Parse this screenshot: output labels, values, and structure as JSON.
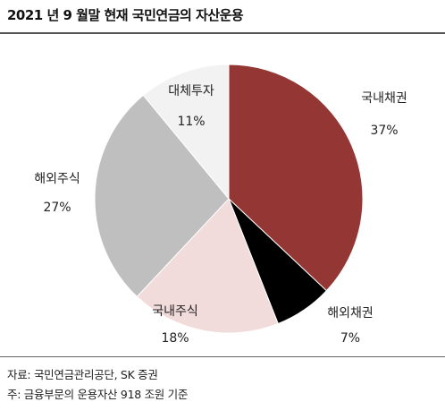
{
  "title": "2021 년 9 월말 현재 국민연금의 자산운용",
  "chart_data": {
    "type": "pie",
    "title": "2021 년 9 월말 현재 국민연금의 자산운용",
    "slices": [
      {
        "label": "국내채권",
        "value": 37,
        "value_label": "37%",
        "color": "#943634"
      },
      {
        "label": "해외채권",
        "value": 7,
        "value_label": "7%",
        "color": "#000000"
      },
      {
        "label": "국내주식",
        "value": 18,
        "value_label": "18%",
        "color": "#f2dcdb"
      },
      {
        "label": "해외주식",
        "value": 27,
        "value_label": "27%",
        "color": "#bfbfbf"
      },
      {
        "label": "대체투자",
        "value": 11,
        "value_label": "11%",
        "color": "#f2f2f2"
      }
    ],
    "start": "12 o'clock",
    "direction": "clockwise",
    "legend": "none"
  },
  "notes": {
    "source": "자료: 국민연금관리공단, SK 증권",
    "footnote": "주: 금융부문의 운용자산 918 조원 기준"
  }
}
